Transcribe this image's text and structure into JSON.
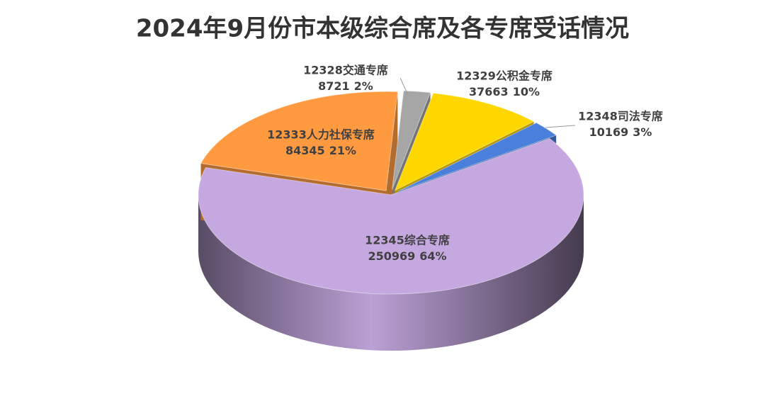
{
  "chart_data": {
    "type": "pie3d",
    "title": "2024年9月份市本级综合席及各专席受话情况",
    "categories": [
      "12328交通专席",
      "12329公积金专席",
      "12348司法专席",
      "12345综合专席",
      "12333人力社保专席"
    ],
    "values": [
      8721,
      37663,
      10169,
      250969,
      84345
    ],
    "percent_labels": [
      "2%",
      "10%",
      "3%",
      "64%",
      "21%"
    ],
    "colors": [
      "#a6a6a6",
      "#ffd700",
      "#4a7fdc",
      "#c5a8e0",
      "#ff9a40"
    ]
  }
}
